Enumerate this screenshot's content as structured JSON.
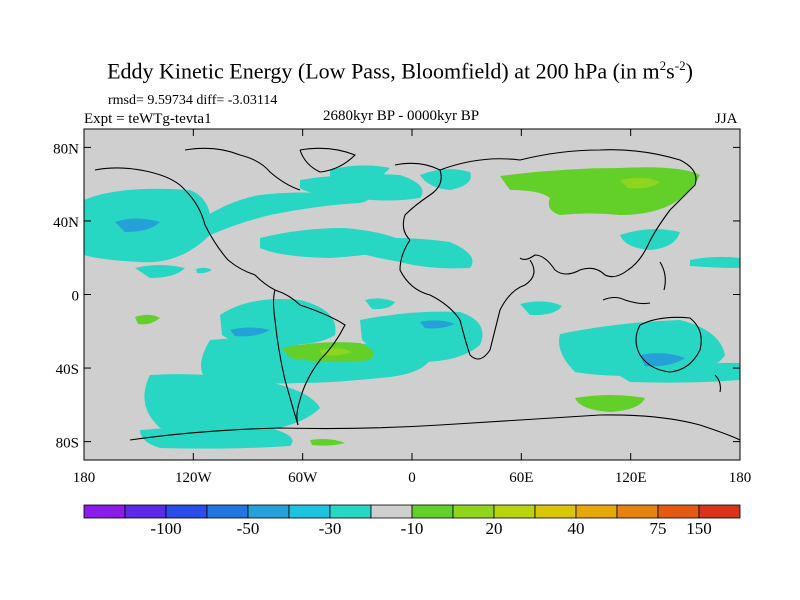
{
  "header": {
    "title_main": "Eddy Kinetic Energy (Low Pass, Bloomfield) at 200 hPa (in m",
    "title_exp1": "2",
    "title_mid": "s",
    "title_exp2": "-2",
    "title_end": ")",
    "stats": "rmsd= 9.59734 diff= -3.03114",
    "experiment": "Expt = teWTg-tevta1",
    "period": "2680kyr BP - 0000kyr BP",
    "season": "JJA"
  },
  "map": {
    "lat_labels": [
      "80N",
      "40N",
      "0",
      "40S",
      "80S"
    ],
    "lat_values": [
      80,
      40,
      0,
      -40,
      -80
    ],
    "lon_labels": [
      "180",
      "120W",
      "60W",
      "0",
      "60E",
      "120E",
      "180"
    ],
    "lon_values": [
      -180,
      -120,
      -60,
      0,
      60,
      120,
      180
    ],
    "lat_range": [
      -90,
      90
    ],
    "lon_range": [
      -180,
      180
    ]
  },
  "colorbar": {
    "colors": [
      "#8a1be8",
      "#5a2ae6",
      "#2a4ce8",
      "#2176e0",
      "#25a0d8",
      "#1cc2e0",
      "#27d7c4",
      "#cfcfcf",
      "#63d02a",
      "#8fd51e",
      "#b7d40f",
      "#d9c60a",
      "#e6a70a",
      "#e6830e",
      "#e45a12",
      "#d8341a"
    ],
    "labels": [
      "-100",
      "-50",
      "-30",
      "-10",
      "20",
      "40",
      "75",
      "150"
    ],
    "label_boundaries": [
      2,
      4,
      6,
      8,
      10,
      12,
      14,
      15
    ]
  }
}
